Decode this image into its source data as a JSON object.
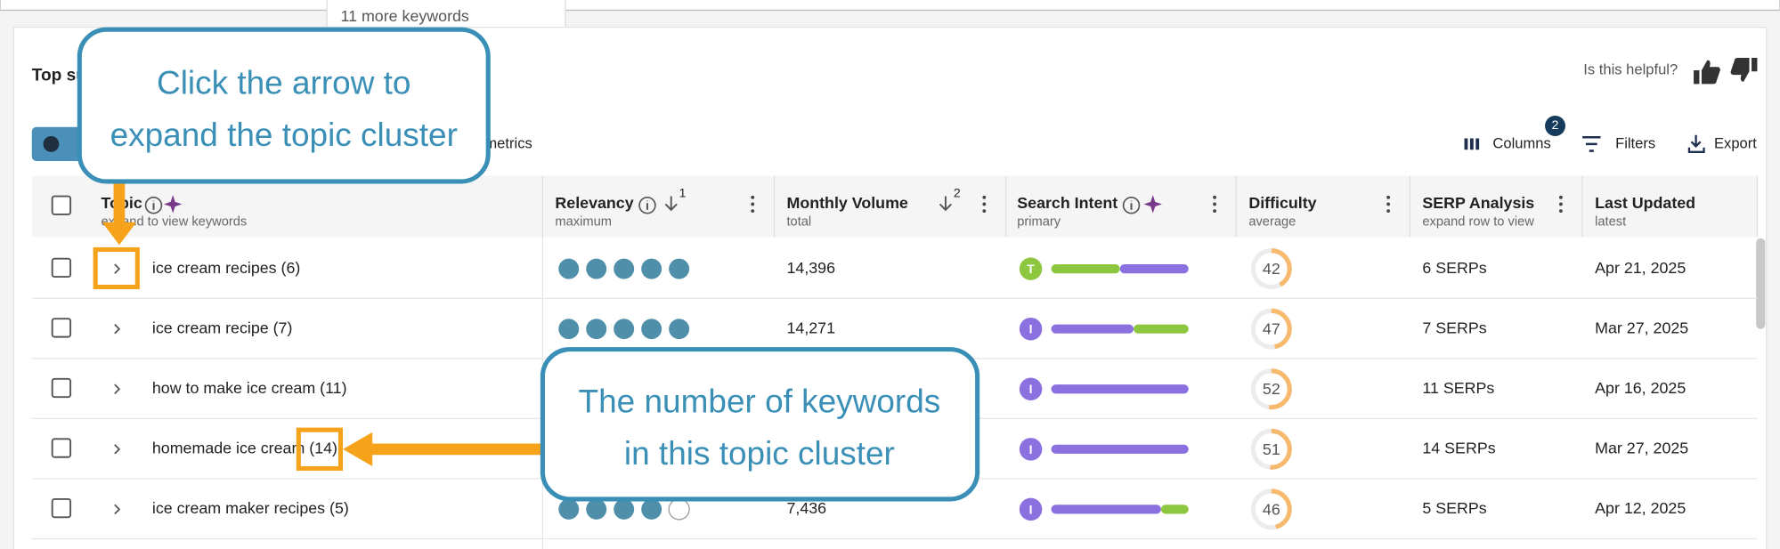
{
  "top_panel": {
    "more_keywords": "11 more keywords"
  },
  "section": {
    "title": "Top su",
    "helpful": "Is this helpful?"
  },
  "toolbar": {
    "metrics": "metrics",
    "columns": "Columns",
    "columns_badge": "2",
    "filters": "Filters",
    "export": "Export"
  },
  "table": {
    "columns": [
      {
        "title": "Topic",
        "sub": "expand to view keywords"
      },
      {
        "title": "Relevancy",
        "sub": "maximum",
        "sort": "1"
      },
      {
        "title": "Monthly Volume",
        "sub": "total",
        "sort": "2"
      },
      {
        "title": "Search Intent",
        "sub": "primary"
      },
      {
        "title": "Difficulty",
        "sub": "average"
      },
      {
        "title": "SERP Analysis",
        "sub": "expand row to view"
      },
      {
        "title": "Last Updated",
        "sub": "latest"
      }
    ],
    "rows": [
      {
        "topic": "ice cream recipes (6)",
        "relevancy": 5,
        "volume": "14,396",
        "intent": "T",
        "intent_color": "#8dc63f",
        "intent_bar": [
          {
            "color": "#8dc63f",
            "value": 50
          },
          {
            "color": "#8b71e0",
            "value": 50
          }
        ],
        "difficulty": 42,
        "serps": "6 SERPs",
        "updated": "Apr 21, 2025"
      },
      {
        "topic": "ice cream recipe (7)",
        "relevancy": 5,
        "volume": "14,271",
        "intent": "I",
        "intent_color": "#8b71e0",
        "intent_bar": [
          {
            "color": "#8b71e0",
            "value": 60
          },
          {
            "color": "#8dc63f",
            "value": 40
          }
        ],
        "difficulty": 47,
        "serps": "7 SERPs",
        "updated": "Mar 27, 2025"
      },
      {
        "topic": "how to make ice cream (11)",
        "intent": "I",
        "intent_color": "#8b71e0",
        "intent_bar": [
          {
            "color": "#8b71e0",
            "value": 100
          }
        ],
        "difficulty": 52,
        "serps": "11 SERPs",
        "updated": "Apr 16, 2025"
      },
      {
        "topic": "homemade ice cream (14)",
        "intent": "I",
        "intent_color": "#8b71e0",
        "intent_bar": [
          {
            "color": "#8b71e0",
            "value": 100
          }
        ],
        "difficulty": 51,
        "serps": "14 SERPs",
        "updated": "Mar 27, 2025"
      },
      {
        "topic": "ice cream maker recipes (5)",
        "relevancy": 4,
        "volume": "7,436",
        "intent": "I",
        "intent_color": "#8b71e0",
        "intent_bar": [
          {
            "color": "#8b71e0",
            "value": 80
          },
          {
            "color": "#8dc63f",
            "value": 20
          }
        ],
        "difficulty": 46,
        "serps": "5 SERPs",
        "updated": "Apr 12, 2025"
      }
    ]
  },
  "callouts": [
    {
      "lines": [
        "Click the arrow to",
        "expand the topic cluster"
      ]
    },
    {
      "lines": [
        "The number of keywords",
        "in this topic cluster"
      ]
    }
  ]
}
